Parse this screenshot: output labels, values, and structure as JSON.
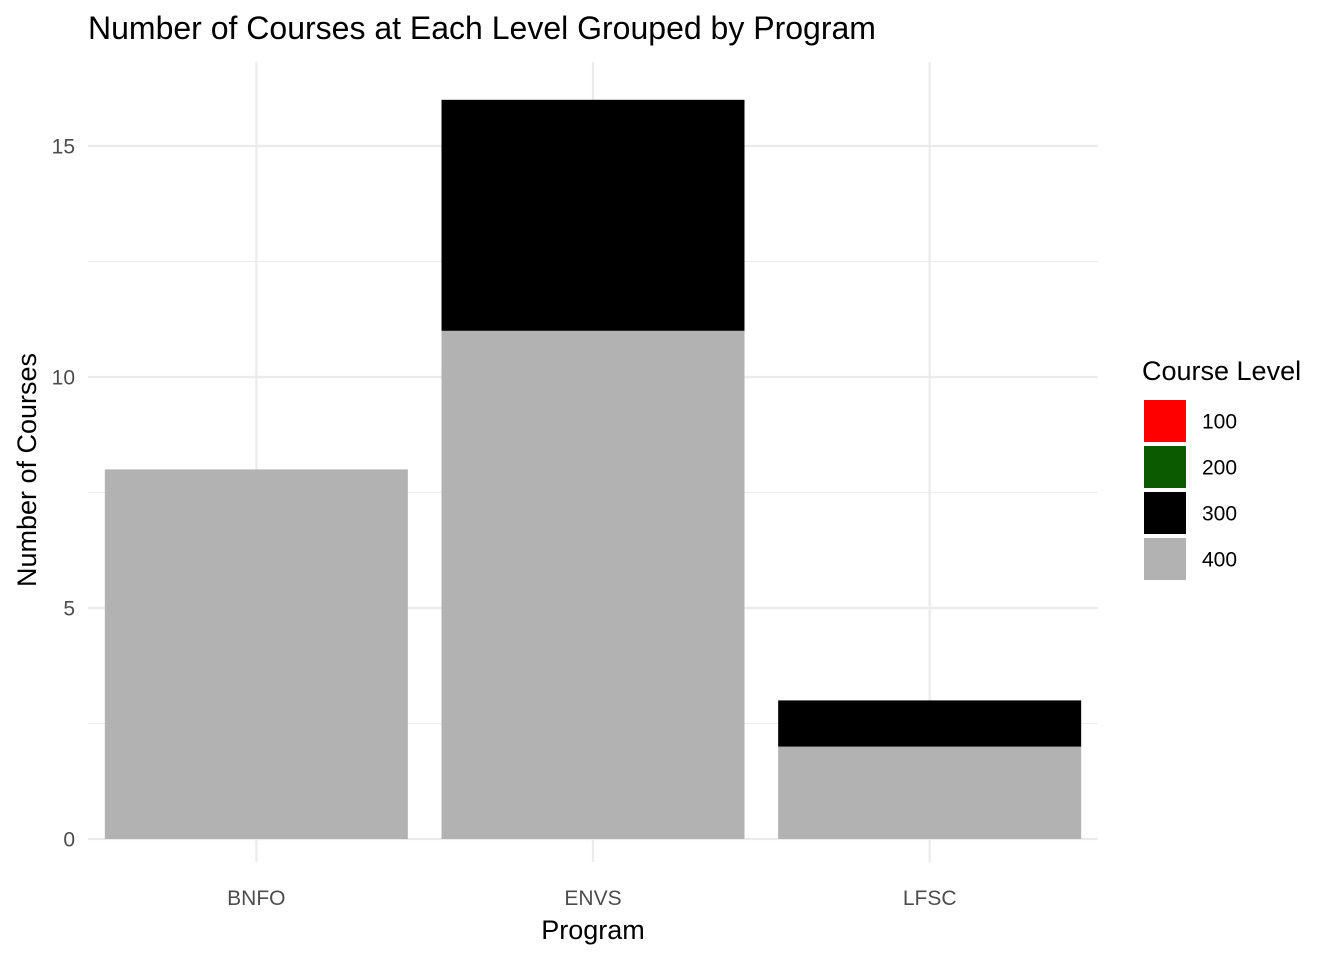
{
  "chart_data": {
    "type": "bar",
    "stacked": true,
    "title": "Number of Courses at Each Level Grouped by Program",
    "xlabel": "Program",
    "ylabel": "Number of Courses",
    "categories": [
      "BNFO",
      "ENVS",
      "LFSC"
    ],
    "ylim": [
      0,
      16
    ],
    "y_ticks": [
      0,
      5,
      10,
      15
    ],
    "grid": true,
    "legend": {
      "title": "Course Level",
      "position": "right"
    },
    "series": [
      {
        "name": "100",
        "color": "#ff0000",
        "values": [
          0,
          0,
          0
        ]
      },
      {
        "name": "200",
        "color": "#0b5a00",
        "values": [
          0,
          0,
          0
        ]
      },
      {
        "name": "300",
        "color": "#000000",
        "values": [
          0,
          5,
          1
        ]
      },
      {
        "name": "400",
        "color": "#b2b2b2",
        "values": [
          8,
          11,
          2
        ]
      }
    ]
  }
}
